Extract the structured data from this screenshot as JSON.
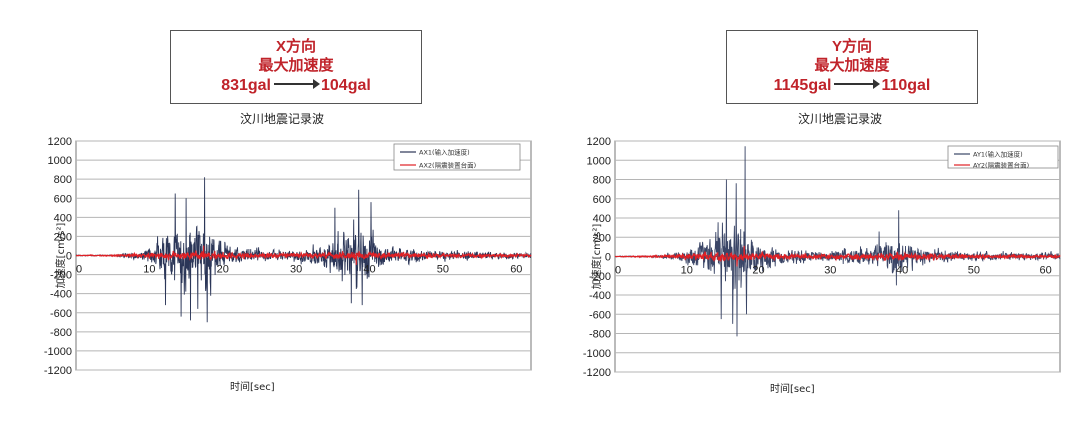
{
  "chart_data": [
    {
      "type": "line",
      "box": {
        "line1": "X方向",
        "line2": "最大加速度",
        "from": "831gal",
        "to": "104gal"
      },
      "title": "汶川地震记录波",
      "xlabel": "时间[sec]",
      "ylabel": "加速度[cm/s²]",
      "xlim": [
        0,
        62
      ],
      "ylim": [
        -1200,
        1200
      ],
      "xticks": [
        0,
        10,
        20,
        30,
        40,
        50,
        60
      ],
      "yticks": [
        1200,
        1000,
        800,
        600,
        400,
        200,
        0,
        -200,
        -400,
        -600,
        -800,
        -1000,
        -1200
      ],
      "grid": true,
      "legend_position": "top-right",
      "series": [
        {
          "name": "AX1(输入加速度)",
          "color": "#2b3658",
          "envelope": [
            [
              0,
              8
            ],
            [
              5,
              10
            ],
            [
              8,
              60
            ],
            [
              9.5,
              120
            ],
            [
              11,
              300
            ],
            [
              13,
              500
            ],
            [
              14,
              620
            ],
            [
              15.5,
              560
            ],
            [
              17.5,
              700
            ],
            [
              19,
              350
            ],
            [
              21,
              200
            ],
            [
              24,
              120
            ],
            [
              28,
              100
            ],
            [
              32,
              150
            ],
            [
              34,
              280
            ],
            [
              36,
              400
            ],
            [
              38,
              560
            ],
            [
              39.5,
              500
            ],
            [
              41,
              260
            ],
            [
              43,
              150
            ],
            [
              48,
              90
            ],
            [
              55,
              70
            ],
            [
              62,
              60
            ]
          ],
          "peaks": [
            [
              13.5,
              650
            ],
            [
              14.3,
              -640
            ],
            [
              15,
              600
            ],
            [
              15.6,
              -680
            ],
            [
              17.5,
              820
            ],
            [
              17.9,
              -700
            ],
            [
              16.6,
              -560
            ],
            [
              12.2,
              -520
            ],
            [
              35.3,
              500
            ],
            [
              38.5,
              690
            ],
            [
              39,
              -520
            ],
            [
              40.2,
              560
            ],
            [
              37.5,
              -500
            ]
          ]
        },
        {
          "name": "AX2(隔震装置台面)",
          "color": "#e02025",
          "envelope": [
            [
              0,
              6
            ],
            [
              5,
              12
            ],
            [
              8,
              30
            ],
            [
              10,
              50
            ],
            [
              14,
              70
            ],
            [
              18,
              75
            ],
            [
              22,
              60
            ],
            [
              26,
              45
            ],
            [
              30,
              40
            ],
            [
              34,
              55
            ],
            [
              38,
              70
            ],
            [
              42,
              55
            ],
            [
              48,
              40
            ],
            [
              55,
              30
            ],
            [
              62,
              25
            ]
          ],
          "peaks": [
            [
              17.4,
              104
            ],
            [
              38.2,
              -98
            ]
          ]
        }
      ]
    },
    {
      "type": "line",
      "box": {
        "line1": "Y方向",
        "line2": "最大加速度",
        "from": "1145gal",
        "to": "110gal"
      },
      "title": "汶川地震记录波",
      "xlabel": "时间[sec]",
      "ylabel": "加速度[cm/s²]",
      "xlim": [
        0,
        62
      ],
      "ylim": [
        -1200,
        1200
      ],
      "xticks": [
        0,
        10,
        20,
        30,
        40,
        50,
        60
      ],
      "yticks": [
        1200,
        1000,
        800,
        600,
        400,
        200,
        0,
        -200,
        -400,
        -600,
        -800,
        -1000,
        -1200
      ],
      "grid": true,
      "legend_position": "top-right",
      "series": [
        {
          "name": "AY1(输入加速度)",
          "color": "#3a4566",
          "envelope": [
            [
              0,
              8
            ],
            [
              5,
              10
            ],
            [
              8,
              60
            ],
            [
              10,
              150
            ],
            [
              12,
              300
            ],
            [
              14,
              480
            ],
            [
              16,
              650
            ],
            [
              17.5,
              720
            ],
            [
              18.5,
              450
            ],
            [
              20,
              250
            ],
            [
              23,
              140
            ],
            [
              27,
              100
            ],
            [
              31,
              110
            ],
            [
              34,
              170
            ],
            [
              37,
              230
            ],
            [
              39,
              330
            ],
            [
              40.5,
              260
            ],
            [
              43,
              140
            ],
            [
              48,
              90
            ],
            [
              55,
              70
            ],
            [
              62,
              60
            ]
          ],
          "peaks": [
            [
              15.5,
              800
            ],
            [
              16.4,
              -700
            ],
            [
              17,
              -830
            ],
            [
              18.1,
              1145
            ],
            [
              18.3,
              -600
            ],
            [
              14.8,
              -650
            ],
            [
              16.9,
              760
            ],
            [
              39.5,
              480
            ],
            [
              39.2,
              -300
            ],
            [
              36.8,
              260
            ]
          ]
        },
        {
          "name": "AY2(隔震装置台面)",
          "color": "#e02025",
          "envelope": [
            [
              0,
              6
            ],
            [
              5,
              12
            ],
            [
              8,
              30
            ],
            [
              10,
              55
            ],
            [
              14,
              75
            ],
            [
              18,
              80
            ],
            [
              22,
              60
            ],
            [
              26,
              45
            ],
            [
              30,
              40
            ],
            [
              34,
              55
            ],
            [
              38,
              70
            ],
            [
              42,
              55
            ],
            [
              48,
              40
            ],
            [
              55,
              30
            ],
            [
              62,
              25
            ]
          ],
          "peaks": [
            [
              18.0,
              110
            ],
            [
              17.0,
              -104
            ]
          ]
        }
      ]
    }
  ]
}
